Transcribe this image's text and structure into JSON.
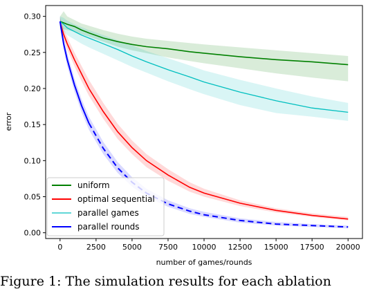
{
  "chart_data": {
    "type": "line",
    "title": "",
    "xlabel": "number of games/rounds",
    "ylabel": "error",
    "xlim": [
      -1000,
      21000
    ],
    "ylim": [
      -0.008,
      0.315
    ],
    "x_ticks": [
      0,
      2500,
      5000,
      7500,
      10000,
      12500,
      15000,
      17500,
      20000
    ],
    "x_tick_labels": [
      "0",
      "2500",
      "5000",
      "7500",
      "10000",
      "12500",
      "15000",
      "17500",
      "20000"
    ],
    "y_ticks": [
      0.0,
      0.05,
      0.1,
      0.15,
      0.2,
      0.25,
      0.3
    ],
    "y_tick_labels": [
      "0.00",
      "0.05",
      "0.10",
      "0.15",
      "0.20",
      "0.25",
      "0.30"
    ],
    "grid": false,
    "legend_position": "lower-left",
    "x": [
      0,
      250,
      500,
      1000,
      1500,
      2000,
      3000,
      4000,
      5000,
      6000,
      7500,
      9000,
      10000,
      12500,
      15000,
      17500,
      20000
    ],
    "series": [
      {
        "name": "uniform",
        "color": "#008000",
        "line_style": "solid",
        "values": [
          0.293,
          0.291,
          0.289,
          0.286,
          0.281,
          0.277,
          0.27,
          0.265,
          0.261,
          0.258,
          0.255,
          0.251,
          0.249,
          0.244,
          0.24,
          0.237,
          0.233
        ],
        "lower": [
          0.283,
          0.282,
          0.281,
          0.279,
          0.275,
          0.272,
          0.265,
          0.258,
          0.253,
          0.249,
          0.243,
          0.238,
          0.235,
          0.228,
          0.221,
          0.215,
          0.21
        ],
        "upper": [
          0.3,
          0.307,
          0.3,
          0.295,
          0.29,
          0.287,
          0.281,
          0.276,
          0.272,
          0.269,
          0.266,
          0.263,
          0.261,
          0.257,
          0.253,
          0.249,
          0.245
        ]
      },
      {
        "name": "optimal sequential",
        "color": "#ff0000",
        "line_style": "solid",
        "values": [
          0.292,
          0.275,
          0.262,
          0.24,
          0.22,
          0.2,
          0.168,
          0.14,
          0.118,
          0.1,
          0.08,
          0.063,
          0.055,
          0.041,
          0.031,
          0.024,
          0.019
        ],
        "lower": [
          0.285,
          0.268,
          0.254,
          0.231,
          0.21,
          0.19,
          0.158,
          0.13,
          0.109,
          0.091,
          0.072,
          0.057,
          0.05,
          0.037,
          0.028,
          0.022,
          0.017
        ],
        "upper": [
          0.299,
          0.283,
          0.271,
          0.25,
          0.231,
          0.212,
          0.18,
          0.151,
          0.128,
          0.109,
          0.088,
          0.07,
          0.061,
          0.045,
          0.034,
          0.027,
          0.022
        ]
      },
      {
        "name": "parallel games",
        "color": "#00bfbf",
        "line_style": "solid",
        "values": [
          0.293,
          0.289,
          0.284,
          0.279,
          0.274,
          0.27,
          0.262,
          0.254,
          0.245,
          0.237,
          0.226,
          0.216,
          0.209,
          0.195,
          0.183,
          0.173,
          0.167
        ],
        "lower": [
          0.282,
          0.279,
          0.274,
          0.268,
          0.262,
          0.257,
          0.248,
          0.239,
          0.23,
          0.222,
          0.21,
          0.199,
          0.192,
          0.177,
          0.166,
          0.161,
          0.155
        ],
        "upper": [
          0.3,
          0.298,
          0.294,
          0.289,
          0.285,
          0.281,
          0.274,
          0.267,
          0.26,
          0.252,
          0.242,
          0.232,
          0.225,
          0.212,
          0.2,
          0.189,
          0.18
        ]
      },
      {
        "name": "parallel rounds",
        "color": "#0000ff",
        "line_style": "solid-then-dashed",
        "dash_start_x": 2000,
        "values": [
          0.293,
          0.262,
          0.24,
          0.205,
          0.176,
          0.152,
          0.117,
          0.09,
          0.07,
          0.055,
          0.04,
          0.03,
          0.025,
          0.017,
          0.012,
          0.01,
          0.008
        ],
        "lower": [
          0.286,
          0.254,
          0.231,
          0.196,
          0.167,
          0.143,
          0.109,
          0.083,
          0.064,
          0.05,
          0.036,
          0.026,
          0.022,
          0.014,
          0.01,
          0.008,
          0.006
        ],
        "upper": [
          0.3,
          0.27,
          0.249,
          0.214,
          0.185,
          0.161,
          0.126,
          0.098,
          0.077,
          0.061,
          0.045,
          0.034,
          0.029,
          0.02,
          0.015,
          0.012,
          0.01
        ]
      }
    ]
  },
  "caption": "Figure 1: The simulation results for each ablation"
}
